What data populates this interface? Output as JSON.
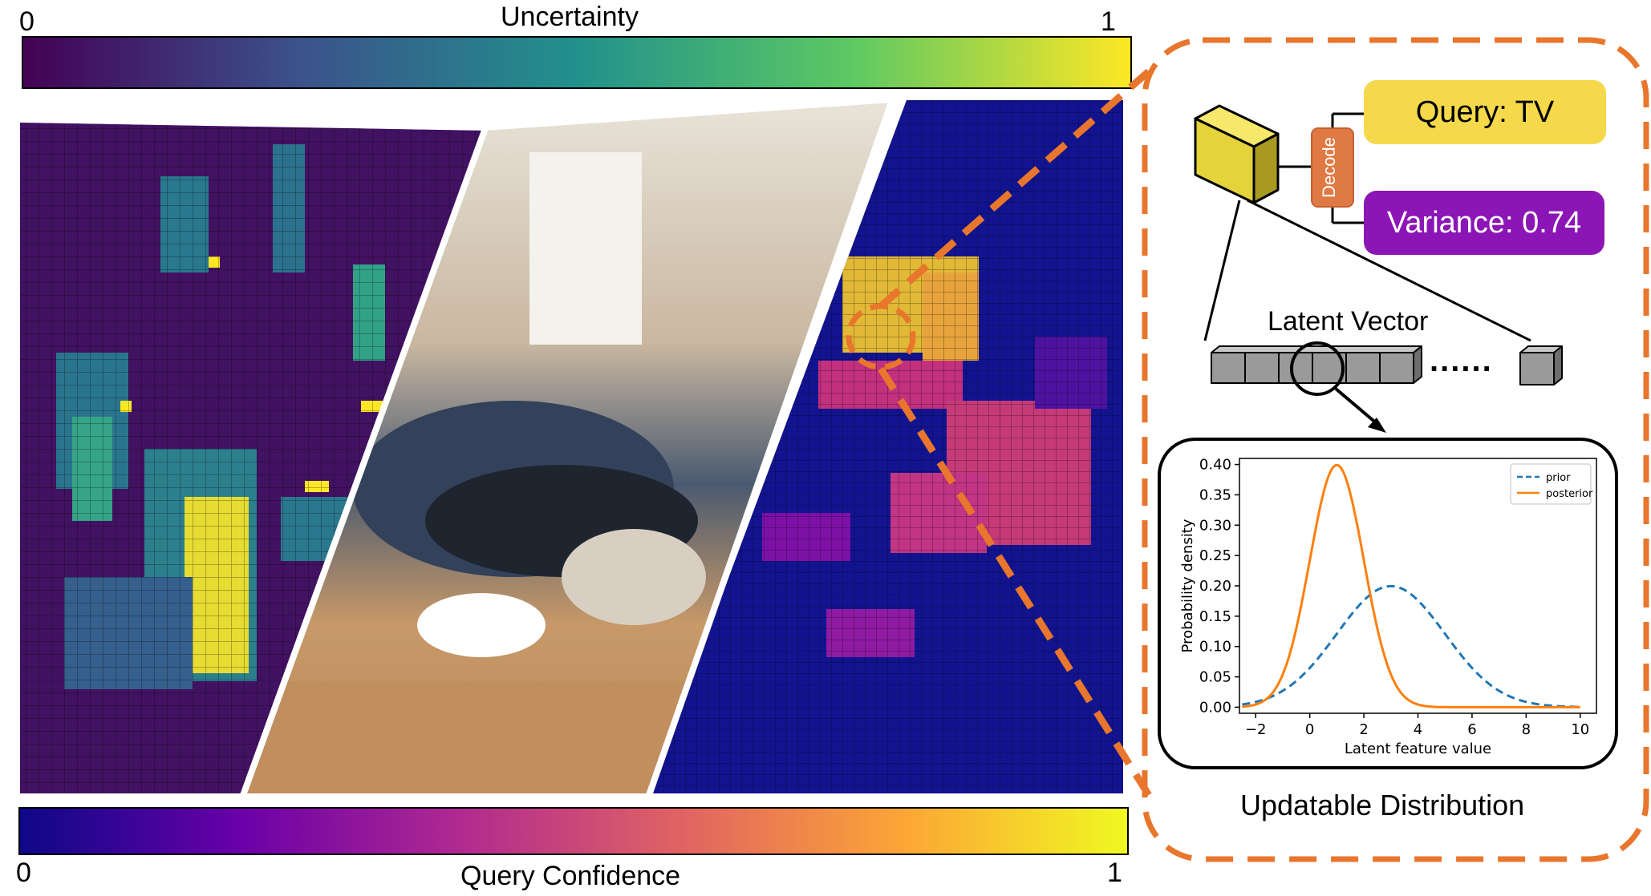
{
  "uncertainty_bar": {
    "title": "Uncertainty",
    "min_label": "0",
    "max_label": "1"
  },
  "confidence_bar": {
    "title": "Query Confidence",
    "min_label": "0",
    "max_label": "1"
  },
  "voxel": {
    "decode_label": "Decode"
  },
  "query_box": {
    "text": "Query: TV"
  },
  "variance_box": {
    "text": "Variance: 0.74"
  },
  "latent": {
    "title": "Latent Vector",
    "ellipsis": "......"
  },
  "caption": "Updatable Distribution",
  "chart_data": {
    "type": "line",
    "xlabel": "Latent feature value",
    "ylabel": "Probability density",
    "xlim": [
      -2.6,
      10.6
    ],
    "ylim": [
      -0.01,
      0.41
    ],
    "xticks": [
      -2,
      0,
      2,
      4,
      6,
      8,
      10
    ],
    "yticks": [
      0.0,
      0.05,
      0.1,
      0.15,
      0.2,
      0.25,
      0.3,
      0.35,
      0.4
    ],
    "series": [
      {
        "name": "prior",
        "color": "#1f77b4",
        "dash": true,
        "mean": 3,
        "std": 2,
        "x_range": [
          -2.5,
          10
        ]
      },
      {
        "name": "posterior",
        "color": "#ff7f0e",
        "dash": false,
        "mean": 1,
        "std": 1,
        "x_range": [
          -2.5,
          10
        ]
      }
    ],
    "legend_position": "top-right"
  },
  "colors": {
    "accent_orange": "#e8762c",
    "query_yellow": "#f5d94a",
    "variance_purple": "#8b16b5",
    "decode_orange": "#e07a45",
    "viridis": [
      "#440154",
      "#3b528b",
      "#21918c",
      "#5ec962",
      "#fde725"
    ],
    "plasma": [
      "#0d0887",
      "#6a00a8",
      "#b12a90",
      "#e16462",
      "#fca636",
      "#f0f921"
    ]
  }
}
